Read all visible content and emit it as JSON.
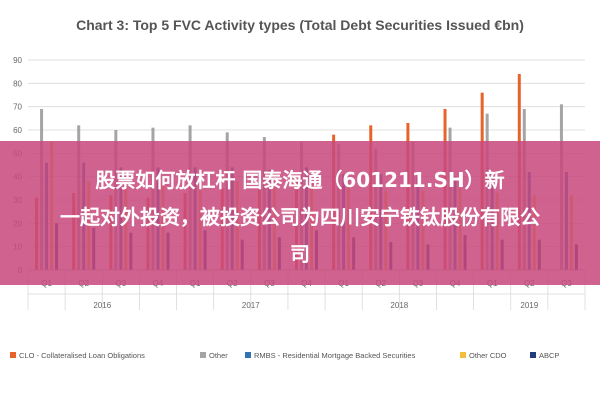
{
  "chart_data": {
    "type": "bar",
    "title": "Chart 3: Top 5 FVC Activity types (Total Debt Securities Issued €bn)",
    "categories": [
      "Q1",
      "Q2",
      "Q3",
      "Q4",
      "Q1",
      "Q2",
      "Q3",
      "Q4",
      "Q1",
      "Q2",
      "Q3",
      "Q4",
      "Q1",
      "Q2",
      "Q3"
    ],
    "years": [
      {
        "label": "2016",
        "start": 0,
        "end": 3
      },
      {
        "label": "2017",
        "start": 4,
        "end": 7
      },
      {
        "label": "2018",
        "start": 8,
        "end": 11
      },
      {
        "label": "2019",
        "start": 12,
        "end": 14
      }
    ],
    "yticks": [
      "0",
      "10",
      "20",
      "30",
      "40",
      "50",
      "60",
      "70",
      "80",
      "90"
    ],
    "ylim": [
      0,
      90
    ],
    "grid": true,
    "legend_position": "bottom",
    "series": [
      {
        "name": "CLO - Collateralised Loan Obligations",
        "color": "#e8632b",
        "values": [
          31,
          33,
          32,
          31,
          33,
          35,
          36,
          38,
          58,
          62,
          63,
          69,
          76,
          84,
          0
        ]
      },
      {
        "name": "Other",
        "color": "#a5a5a5",
        "values": [
          69,
          62,
          60,
          61,
          62,
          59,
          57,
          55,
          54,
          52,
          55,
          61,
          67,
          69,
          71
        ]
      },
      {
        "name": "RMBS - Residential Mortgage Backed Securities",
        "color": "#3173b4",
        "values": [
          46,
          46,
          44,
          44,
          44,
          44,
          43,
          44,
          41,
          41,
          40,
          40,
          42,
          42,
          42
        ]
      },
      {
        "name": "Other CDO",
        "color": "#f5bd3c",
        "values": [
          55,
          38,
          38,
          39,
          38,
          38,
          38,
          37,
          37,
          34,
          34,
          35,
          33,
          32,
          32
        ]
      },
      {
        "name": "ABCP",
        "color": "#1f3d7a",
        "values": [
          20,
          18,
          16,
          16,
          17,
          13,
          14,
          17,
          14,
          12,
          11,
          15,
          13,
          13,
          11
        ]
      }
    ]
  },
  "overlay": {
    "line1": "股票如何放杠杆 国泰海通（601211.SH）新",
    "line2": "一起对外投资，被投资公司为四川安宁铁钛股份有限公",
    "line3": "司"
  }
}
